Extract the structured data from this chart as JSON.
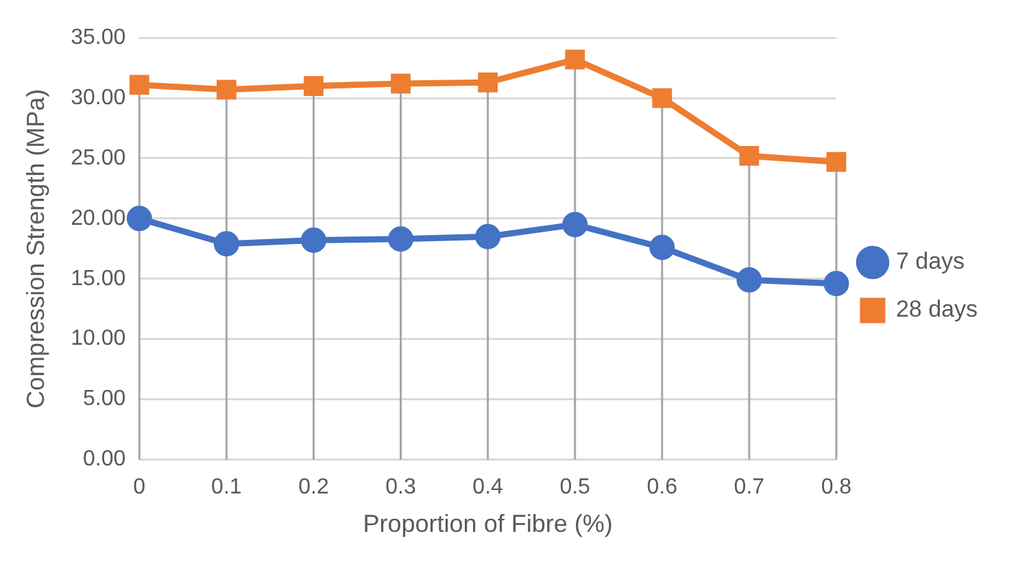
{
  "chart_data": {
    "type": "line",
    "xlabel": "Proportion of Fibre (%)",
    "ylabel": "Compression Strength (MPa)",
    "categories": [
      "0",
      "0.1",
      "0.2",
      "0.3",
      "0.4",
      "0.5",
      "0.6",
      "0.7",
      "0.8"
    ],
    "series": [
      {
        "name": "7 days",
        "color": "#4472c4",
        "marker": "circle",
        "values": [
          20.0,
          17.9,
          18.2,
          18.3,
          18.5,
          19.5,
          17.6,
          14.9,
          14.6
        ]
      },
      {
        "name": "28 days",
        "color": "#ed7d31",
        "marker": "square",
        "values": [
          31.1,
          30.7,
          31.0,
          31.2,
          31.3,
          33.2,
          30.0,
          25.2,
          24.7
        ]
      }
    ],
    "ylim": [
      0,
      35
    ],
    "yticks": [
      {
        "value": 0,
        "label": "0.00"
      },
      {
        "value": 5,
        "label": "5.00"
      },
      {
        "value": 10,
        "label": "10.00"
      },
      {
        "value": 15,
        "label": "15.00"
      },
      {
        "value": 20,
        "label": "20.00"
      },
      {
        "value": 25,
        "label": "25.00"
      },
      {
        "value": 30,
        "label": "30.00"
      },
      {
        "value": 35,
        "label": "35.00"
      }
    ],
    "grid": true,
    "legend": "right",
    "line_style": "solid"
  }
}
